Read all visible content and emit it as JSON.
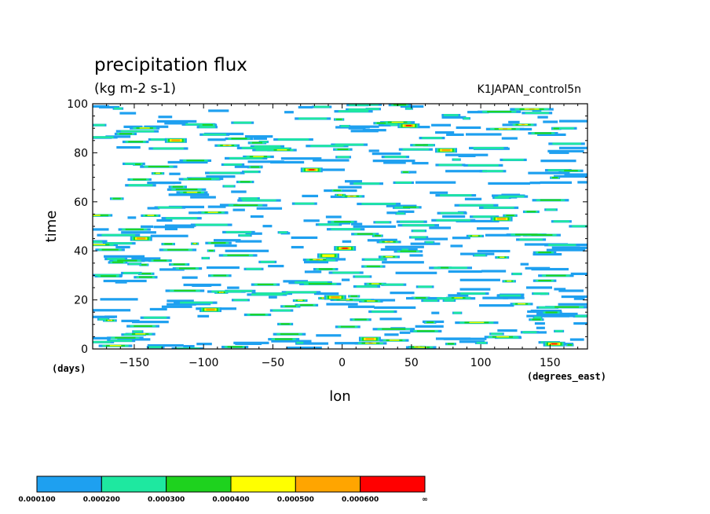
{
  "chart_data": {
    "type": "heatmap",
    "title": "precipitation flux",
    "subtitle": "(kg m-2 s-1)",
    "run_label": "K1JAPAN_control5n",
    "xlabel": "lon",
    "ylabel": "time",
    "x_unit": "(degrees_east)",
    "y_unit": "(days)",
    "xlim": [
      -180,
      177
    ],
    "ylim": [
      0,
      100
    ],
    "x_ticks": [
      -150,
      -100,
      -50,
      0,
      50,
      100,
      150
    ],
    "y_ticks": [
      0,
      20,
      40,
      60,
      80,
      100
    ],
    "colorbar": {
      "levels": [
        "0.000100",
        "0.000200",
        "0.000300",
        "0.000400",
        "0.000500",
        "0.000600",
        "∞"
      ],
      "colors": [
        "#1ea0f0",
        "#1ee8a0",
        "#1ed21e",
        "#ffff00",
        "#ffa500",
        "#ff0000"
      ]
    },
    "features": [
      {
        "lon": 2,
        "time": 41,
        "level": 6
      },
      {
        "lon": 48,
        "time": 91,
        "level": 6
      },
      {
        "lon": -22,
        "time": 73,
        "level": 6
      },
      {
        "lon": 153,
        "time": 2,
        "level": 6
      },
      {
        "lon": -145,
        "time": 45,
        "level": 5
      },
      {
        "lon": -95,
        "time": 16,
        "level": 5
      },
      {
        "lon": 115,
        "time": 53,
        "level": 5
      },
      {
        "lon": 75,
        "time": 81,
        "level": 5
      },
      {
        "lon": -120,
        "time": 85,
        "level": 5
      },
      {
        "lon": 20,
        "time": 4,
        "level": 5
      },
      {
        "lon": -10,
        "time": 38,
        "level": 4
      },
      {
        "lon": -5,
        "time": 21,
        "level": 5
      }
    ]
  }
}
